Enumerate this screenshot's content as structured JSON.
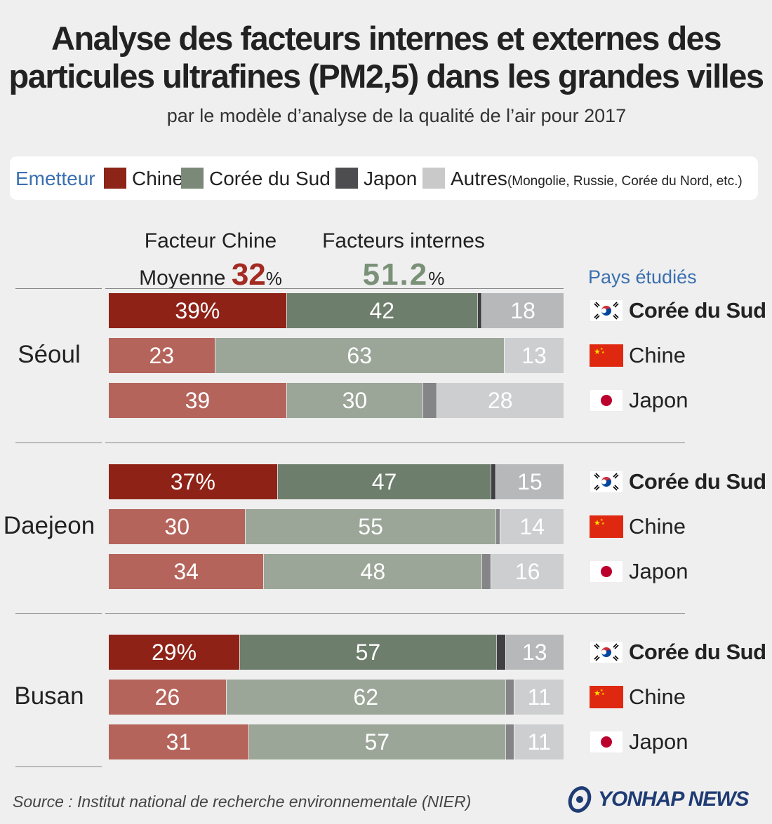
{
  "title_line1": "Analyse des facteurs internes et externes des",
  "title_line2": "particules ultrafines (PM2,5) dans les grandes villes",
  "subtitle": "par le modèle d’analyse de la qualité de l’air pour 2017",
  "legend": {
    "title": "Emetteur",
    "items": [
      {
        "label": "Chine",
        "color": "#8c2418"
      },
      {
        "label": "Corée du Sud",
        "color": "#7b8a78"
      },
      {
        "label": "Japon",
        "color": "#4d4d4f"
      },
      {
        "label": "Autres",
        "note": "(Mongolie, Russie, Corée du Nord, etc.)",
        "color": "#c9c9ca"
      }
    ]
  },
  "header": {
    "china_line1": "Facteur Chine",
    "china_line2_prefix": "Moyenne ",
    "china_value": "32",
    "pct": "%",
    "internal_line1": "Facteurs internes",
    "internal_value": "51.2",
    "pays_etudies": "Pays étudiés"
  },
  "colors": {
    "china_dark": "#8f2217",
    "china_light": "#b5645c",
    "korea_dark": "#6e7e6c",
    "korea_light": "#9ba698",
    "japan_dark": "#404042",
    "japan_light": "#858587",
    "others_dark": "#b7b8b9",
    "others_light": "#cdcecf"
  },
  "chart_data": {
    "type": "bar",
    "orientation": "horizontal-stacked",
    "series_names": [
      "Chine",
      "Corée du Sud",
      "Japon",
      "Autres"
    ],
    "cities": [
      {
        "name": "Séoul",
        "rows": [
          {
            "country": "Corée du Sud",
            "highlight": true,
            "values": [
              39,
              42,
              1,
              18
            ],
            "labels": [
              "39%",
              "42",
              "",
              "18"
            ]
          },
          {
            "country": "Chine",
            "highlight": false,
            "values": [
              23,
              63,
              0,
              13
            ],
            "labels": [
              "23",
              "63",
              "",
              "13"
            ]
          },
          {
            "country": "Japon",
            "highlight": false,
            "values": [
              39,
              30,
              3,
              28
            ],
            "labels": [
              "39",
              "30",
              "",
              "28"
            ]
          }
        ]
      },
      {
        "name": "Daejeon",
        "rows": [
          {
            "country": "Corée du Sud",
            "highlight": true,
            "values": [
              37,
              47,
              1,
              15
            ],
            "labels": [
              "37%",
              "47",
              "",
              "15"
            ]
          },
          {
            "country": "Chine",
            "highlight": false,
            "values": [
              30,
              55,
              1,
              14
            ],
            "labels": [
              "30",
              "55",
              "",
              "14"
            ]
          },
          {
            "country": "Japon",
            "highlight": false,
            "values": [
              34,
              48,
              2,
              16
            ],
            "labels": [
              "34",
              "48",
              "",
              "16"
            ]
          }
        ]
      },
      {
        "name": "Busan",
        "rows": [
          {
            "country": "Corée du Sud",
            "highlight": true,
            "values": [
              29,
              57,
              2,
              13
            ],
            "labels": [
              "29%",
              "57",
              "",
              "13"
            ]
          },
          {
            "country": "Chine",
            "highlight": false,
            "values": [
              26,
              62,
              2,
              11
            ],
            "labels": [
              "26",
              "62",
              "",
              "11"
            ]
          },
          {
            "country": "Japon",
            "highlight": false,
            "values": [
              31,
              57,
              2,
              11
            ],
            "labels": [
              "31",
              "57",
              "",
              "11"
            ]
          }
        ]
      }
    ]
  },
  "source": "Source : Institut national de recherche environnementale (NIER)",
  "brand": "YONHAP NEWS"
}
